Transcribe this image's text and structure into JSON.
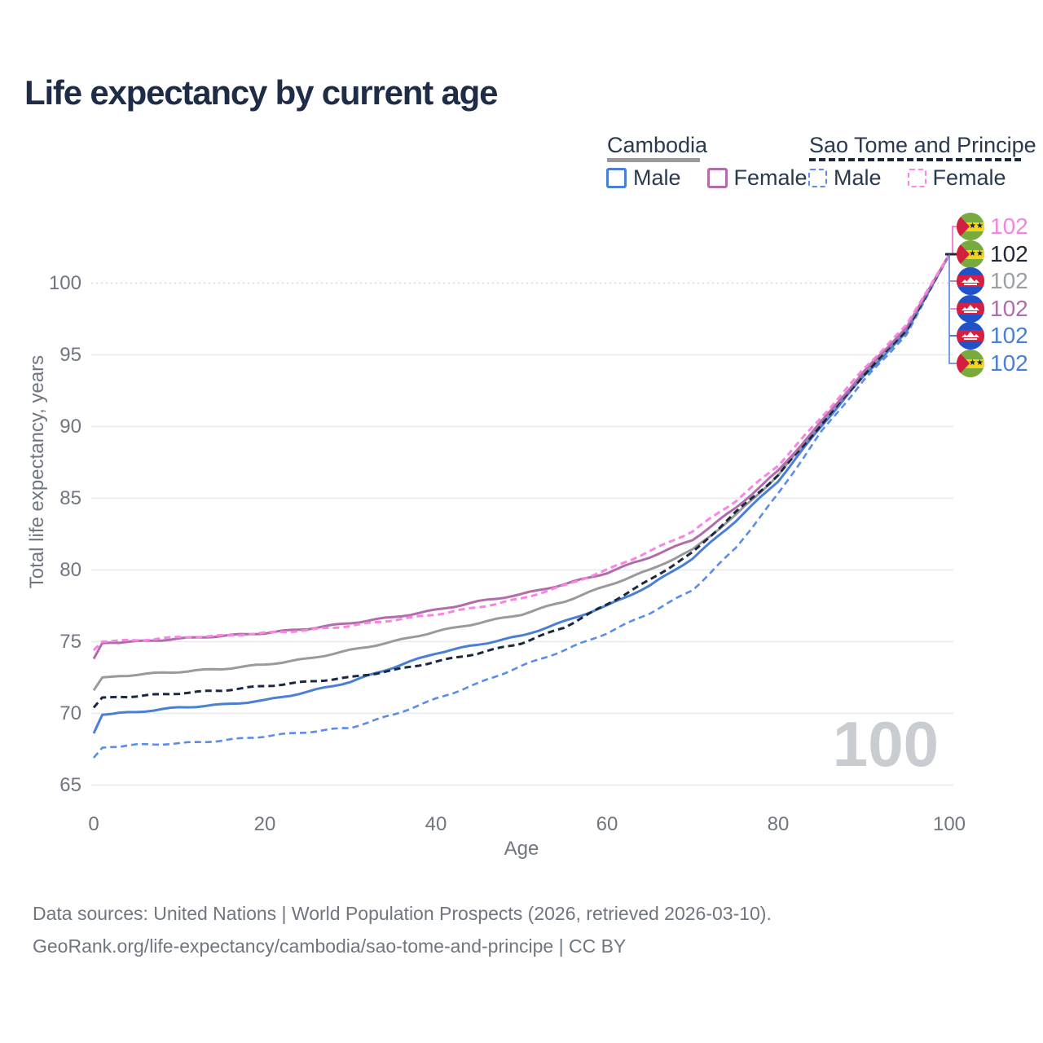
{
  "title": "Life expectancy by current age",
  "legend": {
    "cambodia": {
      "label": "Cambodia",
      "style": "solid",
      "line_color": "#9a9a9a",
      "male_label": "Male",
      "male_color": "#4a7fd6",
      "female_label": "Female",
      "female_color": "#b06da9"
    },
    "sao_tome": {
      "label": "Sao Tome and Principe",
      "style": "dashed",
      "line_color": "#1b2840",
      "male_label": "Male",
      "male_color": "#5b8de8",
      "female_label": "Female",
      "female_color": "#f884e4"
    }
  },
  "chart_data": {
    "type": "line",
    "title": "Life expectancy by current age",
    "xlabel": "Age",
    "ylabel": "Total life expectancy, years",
    "xlim": [
      0,
      100
    ],
    "ylim": [
      65,
      103
    ],
    "xticks": [
      0,
      20,
      40,
      60,
      80,
      100
    ],
    "yticks": [
      65,
      70,
      75,
      80,
      85,
      90,
      95,
      100
    ],
    "grid": "horizontal",
    "legend_position": "top-right",
    "ages": [
      0,
      1,
      5,
      10,
      15,
      20,
      25,
      30,
      35,
      40,
      45,
      50,
      55,
      60,
      65,
      70,
      75,
      80,
      85,
      90,
      95,
      100
    ],
    "series": [
      {
        "name": "Cambodia (both sexes)",
        "country": "Cambodia",
        "sex": "both",
        "style": "solid",
        "color": "#9a9a9a",
        "width": 3,
        "values": [
          71.6,
          72.5,
          72.7,
          72.9,
          73.1,
          73.4,
          73.8,
          74.4,
          75.0,
          75.7,
          76.3,
          76.9,
          77.8,
          78.9,
          80.0,
          81.4,
          83.8,
          86.6,
          90.2,
          93.7,
          96.8,
          102
        ]
      },
      {
        "name": "Sao Tome and Principe Male",
        "country": "Sao Tome and Principe",
        "sex": "male",
        "style": "dashed",
        "color": "#5b8de8",
        "width": 2.6,
        "values": [
          66.9,
          67.6,
          67.8,
          67.9,
          68.1,
          68.4,
          68.7,
          69.0,
          69.9,
          71.0,
          72.1,
          73.3,
          74.4,
          75.6,
          77.0,
          78.6,
          81.5,
          85.3,
          89.6,
          93.2,
          96.4,
          102
        ]
      },
      {
        "name": "Cambodia Male",
        "country": "Cambodia",
        "sex": "male",
        "style": "solid",
        "color": "#4a7fd6",
        "width": 3,
        "values": [
          68.6,
          69.9,
          70.1,
          70.4,
          70.6,
          70.9,
          71.5,
          72.2,
          73.2,
          74.2,
          74.8,
          75.4,
          76.4,
          77.5,
          78.9,
          80.8,
          83.4,
          86.2,
          90.0,
          93.5,
          96.6,
          102
        ]
      },
      {
        "name": "Sao Tome and Principe (both sexes)",
        "country": "Sao Tome and Principe",
        "sex": "both",
        "style": "dashed",
        "color": "#1b2840",
        "width": 3,
        "values": [
          70.4,
          71.1,
          71.2,
          71.4,
          71.6,
          71.9,
          72.2,
          72.5,
          73.0,
          73.6,
          74.2,
          74.9,
          76.0,
          77.6,
          79.3,
          81.2,
          84.0,
          86.6,
          90.1,
          93.6,
          96.7,
          102
        ]
      },
      {
        "name": "Cambodia Female",
        "country": "Cambodia",
        "sex": "female",
        "style": "solid",
        "color": "#b06da9",
        "width": 3,
        "values": [
          73.8,
          74.9,
          75.0,
          75.2,
          75.4,
          75.6,
          75.9,
          76.3,
          76.7,
          77.2,
          77.8,
          78.3,
          79.0,
          79.8,
          80.9,
          82.1,
          84.3,
          86.9,
          90.3,
          93.8,
          96.9,
          102
        ]
      },
      {
        "name": "Sao Tome and Principe Female",
        "country": "Sao Tome and Principe",
        "sex": "female",
        "style": "dashed",
        "color": "#f884e4",
        "width": 3,
        "values": [
          74.4,
          75.0,
          75.1,
          75.3,
          75.4,
          75.6,
          75.8,
          76.1,
          76.5,
          76.9,
          77.4,
          78.0,
          78.9,
          80.0,
          81.3,
          82.7,
          84.8,
          87.3,
          90.6,
          94.0,
          97.1,
          102
        ]
      }
    ]
  },
  "end_labels": [
    {
      "value": "102",
      "flag": "sao-tome",
      "color": "#f584e0"
    },
    {
      "value": "102",
      "flag": "sao-tome",
      "color": "#1f2937"
    },
    {
      "value": "102",
      "flag": "cambodia",
      "color": "#9ca0a5"
    },
    {
      "value": "102",
      "flag": "cambodia",
      "color": "#b06da9"
    },
    {
      "value": "102",
      "flag": "cambodia",
      "color": "#4a7fd6"
    },
    {
      "value": "102",
      "flag": "sao-tome",
      "color": "#4a7fd6"
    }
  ],
  "watermark": "100",
  "footer": {
    "line1": "Data sources: United Nations | World Population Prospects (2026, retrieved 2026-03-10).",
    "line2": "GeoRank.org/life-expectancy/cambodia/sao-tome-and-principe | CC BY"
  }
}
